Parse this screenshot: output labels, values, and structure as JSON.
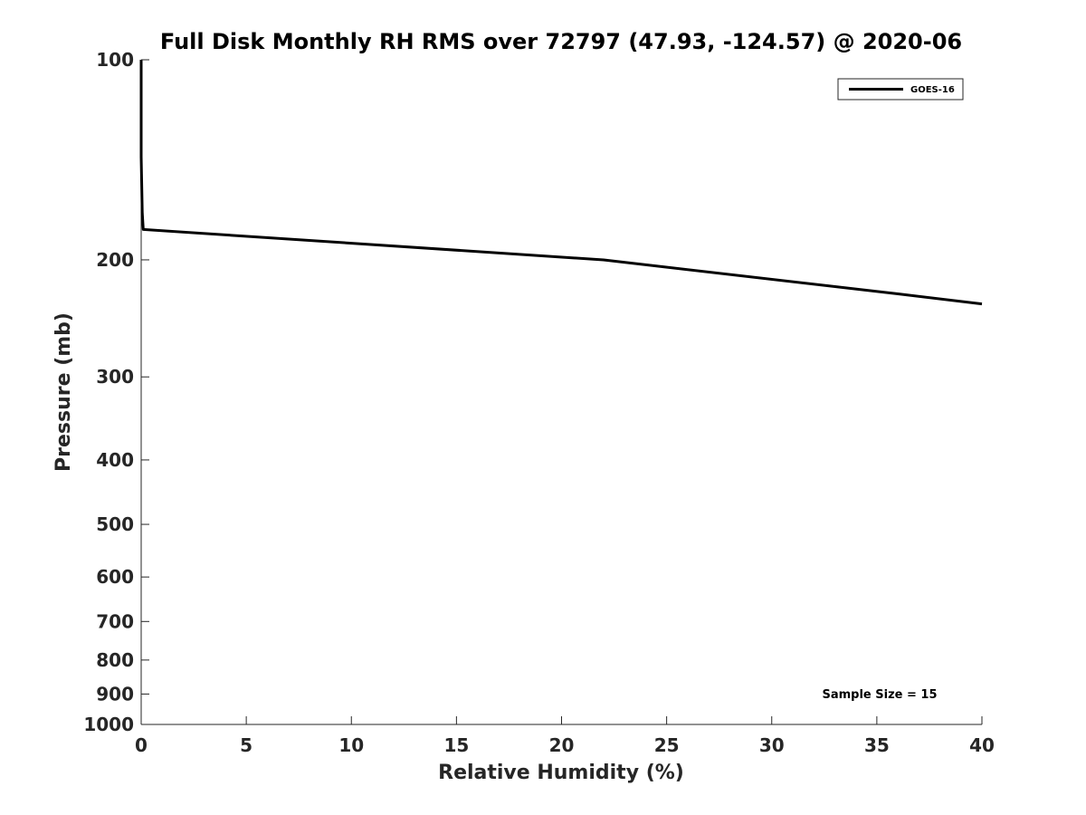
{
  "chart_data": {
    "type": "line",
    "title": "Full Disk Monthly RH RMS over 72797 (47.93, -124.57) @ 2020-06",
    "xlabel": "Relative Humidity (%)",
    "ylabel": "Pressure (mb)",
    "xlim": [
      0,
      40
    ],
    "ylim": [
      100,
      1000
    ],
    "y_scale": "log",
    "y_reversed": true,
    "grid": false,
    "legend_position": "top-right",
    "x_ticks": [
      "0",
      "5",
      "10",
      "15",
      "20",
      "25",
      "30",
      "35",
      "40"
    ],
    "y_ticks": [
      "100",
      "200",
      "300",
      "400",
      "500",
      "600",
      "700",
      "800",
      "900",
      "1000"
    ],
    "series": [
      {
        "name": "GOES-16",
        "color": "#000000",
        "x": [
          0,
          0,
          0,
          0.05,
          0.1,
          22,
          36,
          40
        ],
        "y": [
          100,
          110,
          140,
          170,
          180,
          200,
          225,
          233
        ]
      }
    ],
    "annotation": "Sample Size = 15"
  }
}
